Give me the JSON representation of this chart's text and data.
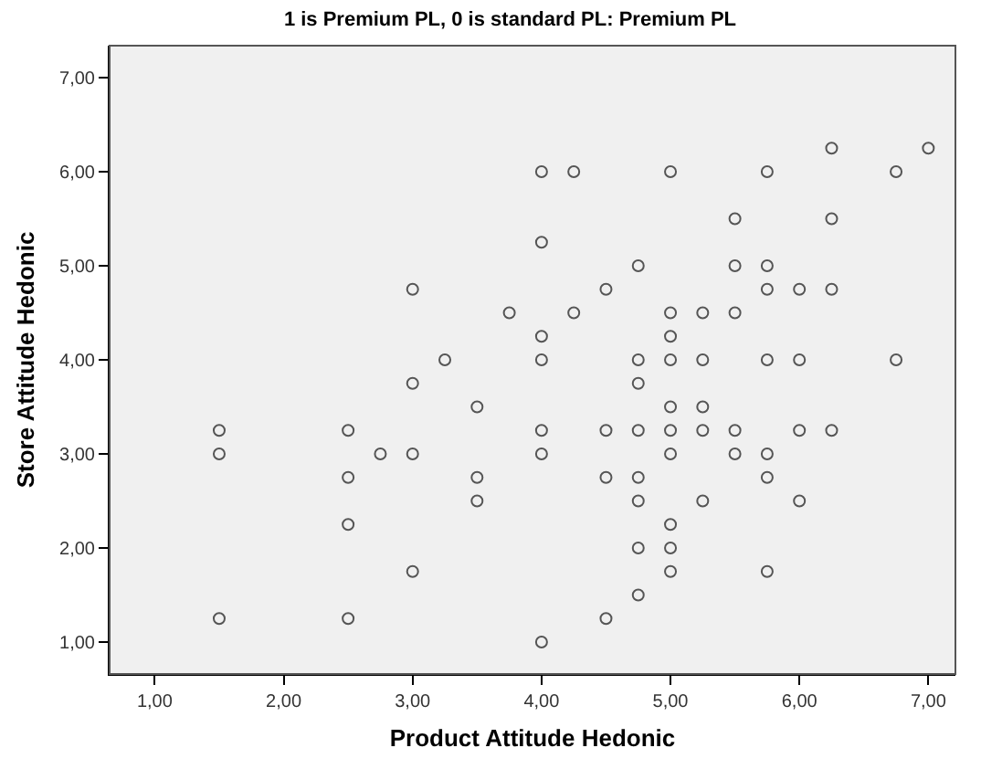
{
  "chart_data": {
    "type": "scatter",
    "title": "1 is Premium PL, 0 is standard PL: Premium PL",
    "xlabel": "Product Attitude Hedonic",
    "ylabel": "Store Attitude Hedonic",
    "marker": "circle",
    "grid": false,
    "xlim": [
      0.65,
      7.21
    ],
    "ylim": [
      0.66,
      7.34
    ],
    "xticks": [
      {
        "value": 1,
        "label": "1,00"
      },
      {
        "value": 2,
        "label": "2,00"
      },
      {
        "value": 3,
        "label": "3,00"
      },
      {
        "value": 4,
        "label": "4,00"
      },
      {
        "value": 5,
        "label": "5,00"
      },
      {
        "value": 6,
        "label": "6,00"
      },
      {
        "value": 7,
        "label": "7,00"
      }
    ],
    "yticks": [
      {
        "value": 1,
        "label": "1,00"
      },
      {
        "value": 2,
        "label": "2,00"
      },
      {
        "value": 3,
        "label": "3,00"
      },
      {
        "value": 4,
        "label": "4,00"
      },
      {
        "value": 5,
        "label": "5,00"
      },
      {
        "value": 6,
        "label": "6,00"
      },
      {
        "value": 7,
        "label": "7,00"
      }
    ],
    "series": [
      {
        "color": "#555555",
        "x": [
          6.25,
          7,
          4,
          4.25,
          5,
          5.75,
          6.75,
          5.5,
          6.25,
          4,
          4.75,
          5.5,
          5.75,
          3,
          4.5,
          5.75,
          6,
          6.25,
          3.75,
          4.25,
          5,
          5.25,
          5.5,
          4,
          5,
          3.25,
          4,
          4.75,
          5,
          5.25,
          5.75,
          6,
          6.75,
          3,
          4.75,
          3.5,
          5,
          5.25,
          1.5,
          2.5,
          4,
          4.5,
          4.75,
          5,
          5.25,
          5.5,
          6,
          6.25,
          1.5,
          2.75,
          3,
          4,
          5,
          5.5,
          5.75,
          2.5,
          3.5,
          4.5,
          4.75,
          5.75,
          3.5,
          4.75,
          5.25,
          6,
          2.5,
          5,
          4.75,
          5,
          3,
          5,
          5.75,
          4.75,
          1.5,
          2.5,
          4.5,
          4
        ],
        "values": [
          6.25,
          6.25,
          6,
          6,
          6,
          6,
          6,
          5.5,
          5.5,
          5.25,
          5,
          5,
          5,
          4.75,
          4.75,
          4.75,
          4.75,
          4.75,
          4.5,
          4.5,
          4.5,
          4.5,
          4.5,
          4.25,
          4.25,
          4,
          4,
          4,
          4,
          4,
          4,
          4,
          4,
          3.75,
          3.75,
          3.5,
          3.5,
          3.5,
          3.25,
          3.25,
          3.25,
          3.25,
          3.25,
          3.25,
          3.25,
          3.25,
          3.25,
          3.25,
          3,
          3,
          3,
          3,
          3,
          3,
          3,
          2.75,
          2.75,
          2.75,
          2.75,
          2.75,
          2.5,
          2.5,
          2.5,
          2.5,
          2.25,
          2.25,
          2,
          2,
          1.75,
          1.75,
          1.75,
          1.5,
          1.25,
          1.25,
          1.25,
          1
        ]
      }
    ]
  }
}
